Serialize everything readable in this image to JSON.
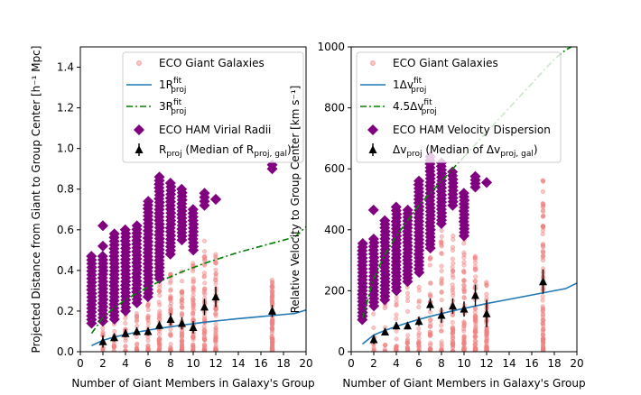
{
  "chart_data": [
    {
      "type": "scatter",
      "xlabel": "Number of Giant Members in Galaxy's Group",
      "ylabel": "Projected Distance from Giant to Group Center [h⁻¹ Mpc]",
      "xlim": [
        0,
        20
      ],
      "ylim": [
        0,
        1.5
      ],
      "xticks": [
        "0",
        "2",
        "4",
        "6",
        "8",
        "10",
        "12",
        "14",
        "16",
        "18",
        "20"
      ],
      "yticks": [
        "0.0",
        "0.2",
        "0.4",
        "0.6",
        "0.8",
        "1.0",
        "1.2",
        "1.4"
      ],
      "legend_position": "top-right",
      "legend": [
        {
          "text": "ECO Giant Galaxies"
        },
        {
          "text": "1R",
          "sub": "proj",
          "sup": "fit"
        },
        {
          "text": "3R",
          "sub": "proj",
          "sup": "fit"
        },
        {
          "text": "ECO HAM Virial Radii"
        },
        {
          "text": "R",
          "sub": "proj",
          "tail": " (Median of R",
          "tail_sub": "proj, gal",
          "tail_end": ")"
        }
      ],
      "fit_1x": {
        "x": [
          1,
          2,
          3,
          4,
          5,
          6,
          7,
          8,
          9,
          10,
          11,
          12,
          13,
          14,
          15,
          16,
          17,
          18,
          19,
          20
        ],
        "y": [
          0.03,
          0.056,
          0.072,
          0.085,
          0.096,
          0.106,
          0.115,
          0.123,
          0.131,
          0.138,
          0.145,
          0.151,
          0.157,
          0.163,
          0.168,
          0.173,
          0.178,
          0.183,
          0.188,
          0.205
        ]
      },
      "fit_3x": {
        "x": [
          1,
          2,
          3,
          4,
          5,
          6,
          7,
          8,
          9,
          10,
          11,
          12,
          13,
          14,
          15,
          16,
          17,
          18,
          19,
          20
        ],
        "y": [
          0.09,
          0.168,
          0.216,
          0.255,
          0.288,
          0.318,
          0.345,
          0.369,
          0.393,
          0.414,
          0.435,
          0.453,
          0.471,
          0.489,
          0.504,
          0.519,
          0.534,
          0.549,
          0.564,
          0.615
        ]
      },
      "virial": [
        {
          "x": 1,
          "ymin": 0.14,
          "ymax": 0.47
        },
        {
          "x": 2,
          "ymin": 0.15,
          "ymax": 0.47,
          "extra": [
            0.62,
            0.52
          ]
        },
        {
          "x": 3,
          "ymin": 0.16,
          "ymax": 0.58
        },
        {
          "x": 4,
          "ymin": 0.2,
          "ymax": 0.6
        },
        {
          "x": 5,
          "ymin": 0.24,
          "ymax": 0.62
        },
        {
          "x": 6,
          "ymin": 0.27,
          "ymax": 0.74
        },
        {
          "x": 7,
          "ymin": 0.36,
          "ymax": 0.86
        },
        {
          "x": 8,
          "ymin": 0.48,
          "ymax": 0.83
        },
        {
          "x": 9,
          "ymin": 0.55,
          "ymax": 0.8
        },
        {
          "x": 10,
          "ymin": 0.5,
          "ymax": 0.7
        },
        {
          "x": 11,
          "ymin": 0.72,
          "ymax": 0.78
        },
        {
          "x": 12,
          "ymin": 0.75,
          "ymax": 0.75
        },
        {
          "x": 17,
          "ymin": 0.9,
          "ymax": 0.92
        }
      ],
      "giants_spread": [
        {
          "x": 2,
          "max": 0.18
        },
        {
          "x": 3,
          "max": 0.2
        },
        {
          "x": 4,
          "max": 0.3
        },
        {
          "x": 5,
          "max": 0.34
        },
        {
          "x": 6,
          "max": 0.42
        },
        {
          "x": 7,
          "max": 0.4
        },
        {
          "x": 8,
          "max": 0.42
        },
        {
          "x": 9,
          "max": 0.4
        },
        {
          "x": 10,
          "max": 0.44
        },
        {
          "x": 11,
          "max": 0.55
        },
        {
          "x": 12,
          "max": 0.5
        },
        {
          "x": 17,
          "max": 0.36
        }
      ],
      "medians": [
        {
          "x": 2,
          "y": 0.05,
          "err": 0.03
        },
        {
          "x": 3,
          "y": 0.07,
          "err": 0.02
        },
        {
          "x": 4,
          "y": 0.09,
          "err": 0.02
        },
        {
          "x": 5,
          "y": 0.1,
          "err": 0.02
        },
        {
          "x": 6,
          "y": 0.1,
          "err": 0.02
        },
        {
          "x": 7,
          "y": 0.13,
          "err": 0.02
        },
        {
          "x": 8,
          "y": 0.16,
          "err": 0.03
        },
        {
          "x": 9,
          "y": 0.14,
          "err": 0.03
        },
        {
          "x": 10,
          "y": 0.12,
          "err": 0.03
        },
        {
          "x": 11,
          "y": 0.22,
          "err": 0.04
        },
        {
          "x": 12,
          "y": 0.27,
          "err": 0.05
        },
        {
          "x": 17,
          "y": 0.2,
          "err": 0.03
        }
      ]
    },
    {
      "type": "scatter",
      "xlabel": "Number of Giant Members in Galaxy's Group",
      "ylabel": "Relative Velocity to Group Center [km s⁻¹]",
      "xlim": [
        0,
        20
      ],
      "ylim": [
        0,
        1000
      ],
      "xticks": [
        "0",
        "2",
        "4",
        "6",
        "8",
        "10",
        "12",
        "14",
        "16",
        "18",
        "20"
      ],
      "yticks": [
        "0",
        "200",
        "400",
        "600",
        "800",
        "1000"
      ],
      "legend_position": "top-left",
      "legend": [
        {
          "text": "ECO Giant Galaxies"
        },
        {
          "text": "1Δv",
          "sub": "proj",
          "sup": "fit"
        },
        {
          "text": "4.5Δv",
          "sub": "proj",
          "sup": "fit"
        },
        {
          "text": "ECO HAM Velocity Dispersion"
        },
        {
          "text": "Δv",
          "sub": "proj",
          "tail": " (Median of Δv",
          "tail_sub": "proj, gal",
          "tail_end": ")"
        }
      ],
      "fit_1x": {
        "x": [
          1,
          2,
          3,
          4,
          5,
          6,
          7,
          8,
          9,
          10,
          11,
          12,
          13,
          14,
          15,
          16,
          17,
          18,
          19,
          20
        ],
        "y": [
          25,
          55,
          70,
          83,
          95,
          106,
          116,
          125,
          134,
          142,
          150,
          158,
          165,
          172,
          179,
          186,
          193,
          200,
          207,
          225
        ]
      },
      "fit_3x": {
        "x": [
          1,
          2,
          3,
          4,
          5,
          6,
          7,
          8,
          9,
          10
        ],
        "y": [
          110,
          240,
          320,
          380,
          430,
          480,
          520,
          560,
          600,
          640
        ]
      },
      "fit_3x_ext": {
        "x": [
          10,
          11,
          12,
          13,
          14,
          15,
          16,
          17,
          18,
          19,
          20
        ],
        "y": [
          640,
          680,
          720,
          760,
          800,
          840,
          880,
          920,
          960,
          990,
          1010
        ]
      },
      "virial": [
        {
          "x": 1,
          "ymin": 105,
          "ymax": 355
        },
        {
          "x": 2,
          "ymin": 150,
          "ymax": 370,
          "extra": [
            465
          ]
        },
        {
          "x": 3,
          "ymin": 170,
          "ymax": 430
        },
        {
          "x": 4,
          "ymin": 200,
          "ymax": 475
        },
        {
          "x": 5,
          "ymin": 230,
          "ymax": 465
        },
        {
          "x": 6,
          "ymin": 260,
          "ymax": 560
        },
        {
          "x": 7,
          "ymin": 340,
          "ymax": 640
        },
        {
          "x": 8,
          "ymin": 420,
          "ymax": 620
        },
        {
          "x": 9,
          "ymin": 480,
          "ymax": 590
        },
        {
          "x": 10,
          "ymin": 380,
          "ymax": 520
        },
        {
          "x": 11,
          "ymin": 540,
          "ymax": 575
        },
        {
          "x": 12,
          "ymin": 555,
          "ymax": 555
        }
      ],
      "giants_spread": [
        {
          "x": 2,
          "max": 130
        },
        {
          "x": 3,
          "max": 250
        },
        {
          "x": 4,
          "max": 340
        },
        {
          "x": 5,
          "max": 420
        },
        {
          "x": 6,
          "max": 450
        },
        {
          "x": 7,
          "max": 480
        },
        {
          "x": 8,
          "max": 500
        },
        {
          "x": 9,
          "max": 390
        },
        {
          "x": 10,
          "max": 420
        },
        {
          "x": 11,
          "max": 330
        },
        {
          "x": 12,
          "max": 230
        },
        {
          "x": 17,
          "max": 570
        }
      ],
      "medians": [
        {
          "x": 2,
          "y": 40,
          "err": 15
        },
        {
          "x": 3,
          "y": 65,
          "err": 12
        },
        {
          "x": 4,
          "y": 85,
          "err": 12
        },
        {
          "x": 5,
          "y": 85,
          "err": 12
        },
        {
          "x": 6,
          "y": 100,
          "err": 15
        },
        {
          "x": 7,
          "y": 155,
          "err": 20
        },
        {
          "x": 8,
          "y": 120,
          "err": 25
        },
        {
          "x": 9,
          "y": 150,
          "err": 25
        },
        {
          "x": 10,
          "y": 140,
          "err": 25
        },
        {
          "x": 11,
          "y": 185,
          "err": 35
        },
        {
          "x": 12,
          "y": 125,
          "err": 45
        },
        {
          "x": 17,
          "y": 230,
          "err": 40
        }
      ]
    }
  ],
  "colors": {
    "giants": "#f08080",
    "fit_1x": "#1f77b4",
    "fit_3x": "#008000",
    "virial": "#800080",
    "median": "#000000"
  }
}
